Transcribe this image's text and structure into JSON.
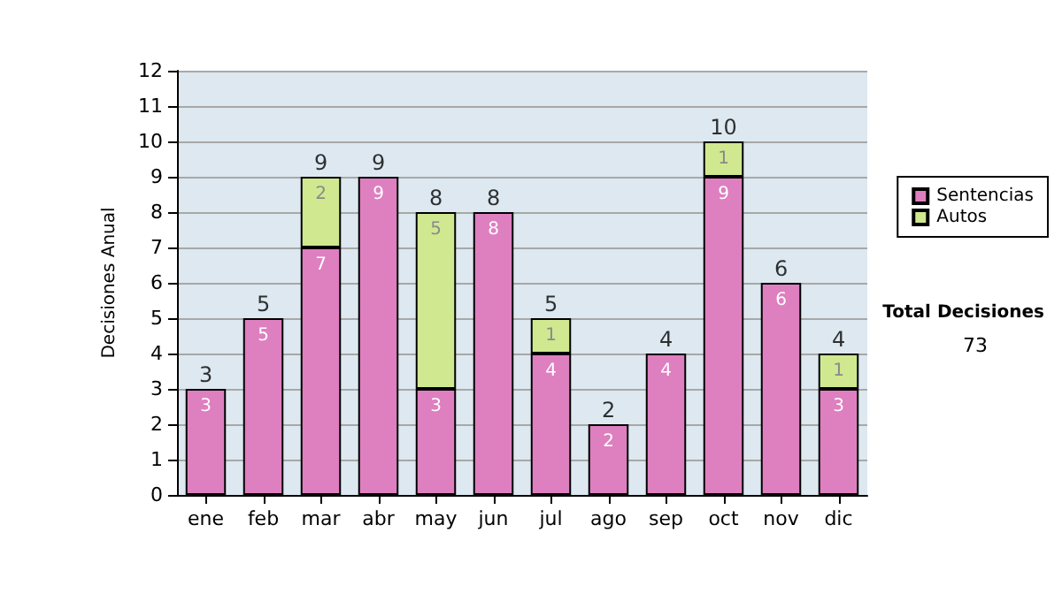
{
  "chart_data": {
    "type": "bar",
    "stacked": true,
    "ylabel": "Decisiones Anual",
    "categories": [
      "ene",
      "feb",
      "mar",
      "abr",
      "may",
      "jun",
      "jul",
      "ago",
      "sep",
      "oct",
      "nov",
      "dic"
    ],
    "series": [
      {
        "name": "Sentencias",
        "color": "#de7fc0",
        "values": [
          3,
          5,
          7,
          9,
          3,
          8,
          4,
          2,
          4,
          9,
          6,
          3
        ]
      },
      {
        "name": "Autos",
        "color": "#d0e890",
        "values": [
          null,
          null,
          2,
          null,
          5,
          null,
          1,
          null,
          null,
          1,
          null,
          1
        ]
      }
    ],
    "totals": [
      "3",
      "5",
      "9",
      "9",
      "8",
      "8",
      "5",
      "2",
      "4",
      "10",
      "6",
      "4"
    ],
    "ylim": [
      0,
      12
    ],
    "yticks": [
      0,
      1,
      2,
      3,
      4,
      5,
      6,
      7,
      8,
      9,
      10,
      11,
      12
    ],
    "grid": "y",
    "data_labels": true,
    "legend": "right",
    "annotations": [
      "Total Decisiones",
      "73"
    ]
  }
}
